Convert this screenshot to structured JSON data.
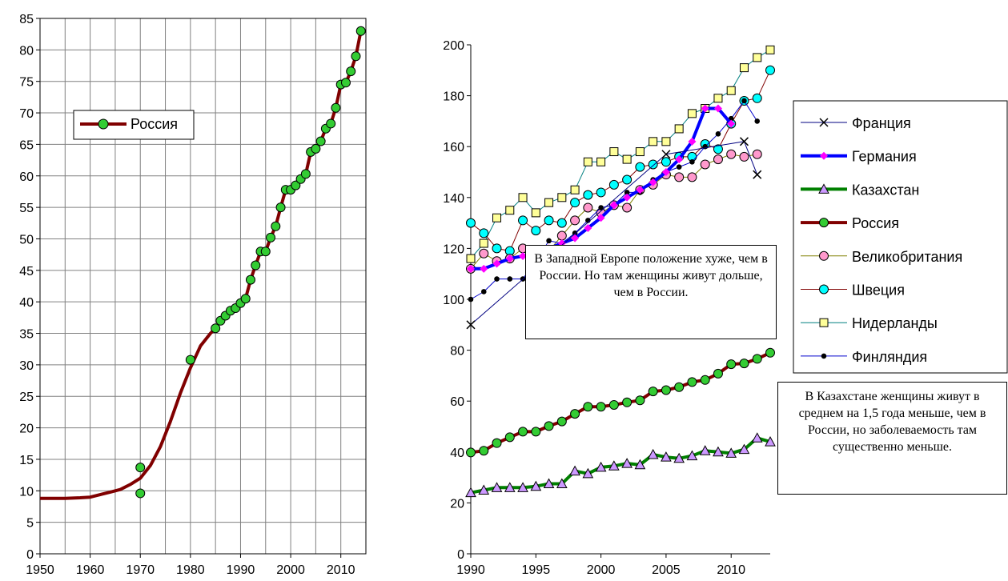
{
  "chart_data": [
    {
      "type": "line",
      "xlim": [
        1950,
        2015
      ],
      "ylim": [
        0,
        85
      ],
      "x_ticks": [
        1950,
        1960,
        1970,
        1980,
        1990,
        2000,
        2010
      ],
      "y_ticks": [
        0,
        5,
        10,
        15,
        20,
        25,
        30,
        35,
        40,
        45,
        50,
        55,
        60,
        65,
        70,
        75,
        80,
        85
      ],
      "grid": true,
      "legend_position": "top-left",
      "colors": {
        "line": "#800000",
        "marker_fill": "#33cc33",
        "marker_edge": "#000000"
      },
      "series": [
        {
          "name": "Россия",
          "line": [
            [
              1950,
              8.8
            ],
            [
              1955,
              8.8
            ],
            [
              1958,
              8.9
            ],
            [
              1960,
              9.0
            ],
            [
              1962,
              9.4
            ],
            [
              1964,
              9.8
            ],
            [
              1966,
              10.2
            ],
            [
              1968,
              11.0
            ],
            [
              1970,
              12.0
            ],
            [
              1972,
              14.0
            ],
            [
              1974,
              17.0
            ],
            [
              1976,
              21.0
            ],
            [
              1978,
              25.5
            ],
            [
              1980,
              29.5
            ],
            [
              1982,
              33.0
            ],
            [
              1984,
              35.0
            ],
            [
              1985,
              35.8
            ],
            [
              1986,
              37.0
            ],
            [
              1987,
              37.8
            ],
            [
              1988,
              38.5
            ],
            [
              1989,
              39.0
            ],
            [
              1990,
              39.8
            ],
            [
              1991,
              40.5
            ],
            [
              1992,
              43.5
            ],
            [
              1993,
              45.8
            ],
            [
              1994,
              48.0
            ],
            [
              1995,
              48.0
            ],
            [
              1996,
              50.2
            ],
            [
              1997,
              52.0
            ],
            [
              1998,
              55.0
            ],
            [
              1999,
              57.8
            ],
            [
              2000,
              57.8
            ],
            [
              2001,
              58.5
            ],
            [
              2002,
              59.5
            ],
            [
              2003,
              60.3
            ],
            [
              2004,
              63.8
            ],
            [
              2005,
              64.3
            ],
            [
              2006,
              65.5
            ],
            [
              2007,
              67.5
            ],
            [
              2008,
              68.3
            ],
            [
              2009,
              70.8
            ],
            [
              2010,
              74.5
            ],
            [
              2011,
              74.8
            ],
            [
              2012,
              76.6
            ],
            [
              2013,
              79.0
            ],
            [
              2014,
              83.0
            ]
          ],
          "points": [
            [
              1970,
              13.7
            ],
            [
              1970,
              9.6
            ],
            [
              1980,
              30.8
            ],
            [
              1985,
              35.8
            ],
            [
              1986,
              37.0
            ],
            [
              1987,
              37.8
            ],
            [
              1988,
              38.6
            ],
            [
              1989,
              39.0
            ],
            [
              1990,
              39.8
            ],
            [
              1991,
              40.5
            ],
            [
              1992,
              43.5
            ],
            [
              1993,
              45.8
            ],
            [
              1994,
              48.0
            ],
            [
              1995,
              48.0
            ],
            [
              1996,
              50.2
            ],
            [
              1997,
              52.0
            ],
            [
              1998,
              55.0
            ],
            [
              1999,
              57.8
            ],
            [
              2000,
              57.8
            ],
            [
              2001,
              58.5
            ],
            [
              2002,
              59.5
            ],
            [
              2003,
              60.3
            ],
            [
              2004,
              63.8
            ],
            [
              2005,
              64.3
            ],
            [
              2006,
              65.5
            ],
            [
              2007,
              67.5
            ],
            [
              2008,
              68.3
            ],
            [
              2009,
              70.8
            ],
            [
              2010,
              74.5
            ],
            [
              2011,
              74.8
            ],
            [
              2012,
              76.6
            ],
            [
              2013,
              79.0
            ],
            [
              2014,
              83.0
            ]
          ]
        }
      ]
    },
    {
      "type": "line",
      "xlim": [
        1990,
        2013
      ],
      "ylim": [
        0,
        200
      ],
      "x_ticks": [
        1990,
        1995,
        2000,
        2005,
        2010
      ],
      "y_ticks": [
        0,
        20,
        40,
        60,
        80,
        100,
        120,
        140,
        160,
        180,
        200
      ],
      "grid": false,
      "legend_position": "right",
      "series": [
        {
          "name": "Франция",
          "color": "#000080",
          "marker": "x",
          "marker_fill": "#000000",
          "line_width": 1,
          "x": [
            1990,
            2005,
            2011,
            2012
          ],
          "y": [
            90,
            157,
            162,
            149
          ]
        },
        {
          "name": "Германия",
          "color": "#0000ff",
          "marker": "diamond",
          "marker_fill": "#ff00ff",
          "line_width": 4,
          "x": [
            1990,
            1991,
            1992,
            1993,
            1994,
            1995,
            1996,
            1997,
            1998,
            1999,
            2000,
            2001,
            2002,
            2003,
            2004,
            2005,
            2006,
            2007,
            2008,
            2009,
            2010
          ],
          "y": [
            112,
            112,
            114,
            116,
            117,
            118,
            120,
            122,
            124,
            128,
            132,
            137,
            140,
            143,
            146,
            150,
            155,
            162,
            175,
            175,
            169
          ]
        },
        {
          "name": "Казахстан",
          "color": "#008000",
          "marker": "triangle",
          "marker_fill": "#cc99ff",
          "line_width": 4,
          "x": [
            1990,
            1991,
            1992,
            1993,
            1994,
            1995,
            1996,
            1997,
            1998,
            1999,
            2000,
            2001,
            2002,
            2003,
            2004,
            2005,
            2006,
            2007,
            2008,
            2009,
            2010,
            2011,
            2012,
            2013
          ],
          "y": [
            24,
            25,
            26,
            26,
            26,
            26.5,
            27.5,
            27.5,
            32.5,
            31.5,
            34,
            34.5,
            35.5,
            35,
            39,
            38,
            37.5,
            38.5,
            40.5,
            40,
            39.5,
            41,
            45.5,
            44
          ]
        },
        {
          "name": "Россия",
          "color": "#800000",
          "marker": "circle",
          "marker_fill": "#33cc33",
          "line_width": 4,
          "x": [
            1990,
            1991,
            1992,
            1993,
            1994,
            1995,
            1996,
            1997,
            1998,
            1999,
            2000,
            2001,
            2002,
            2003,
            2004,
            2005,
            2006,
            2007,
            2008,
            2009,
            2010,
            2011,
            2012,
            2013
          ],
          "y": [
            39.8,
            40.5,
            43.5,
            45.8,
            48,
            48,
            50.2,
            52,
            55,
            57.8,
            57.8,
            58.5,
            59.5,
            60.3,
            63.8,
            64.3,
            65.5,
            67.5,
            68.3,
            70.8,
            74.5,
            74.8,
            76.6,
            79
          ]
        },
        {
          "name": "Великобритания",
          "color": "#808000",
          "marker": "circle",
          "marker_fill": "#ff99cc",
          "line_width": 1,
          "x": [
            1990,
            1991,
            1992,
            1993,
            1994,
            1995,
            1996,
            1997,
            1998,
            1999,
            2000,
            2001,
            2002,
            2003,
            2004,
            2005,
            2006,
            2007,
            2008,
            2009,
            2010,
            2011,
            2012
          ],
          "y": [
            112,
            118,
            115,
            116,
            120,
            118,
            119,
            125,
            131,
            136,
            134,
            137,
            136,
            143,
            145,
            149,
            148,
            148,
            153,
            155,
            157,
            156,
            157
          ]
        },
        {
          "name": "Швеция",
          "color": "#800000",
          "marker": "circle",
          "marker_fill": "#00ffff",
          "line_width": 1,
          "x": [
            1990,
            1991,
            1992,
            1993,
            1994,
            1995,
            1996,
            1997,
            1998,
            1999,
            2000,
            2001,
            2002,
            2003,
            2004,
            2005,
            2006,
            2007,
            2008,
            2009,
            2010,
            2011,
            2012,
            2013
          ],
          "y": [
            130,
            126,
            120,
            119,
            131,
            127,
            131,
            130,
            138,
            141,
            142,
            145,
            147,
            152,
            153,
            154,
            156,
            156,
            161,
            159,
            169,
            178,
            179,
            190
          ]
        },
        {
          "name": "Нидерланды",
          "color": "#008080",
          "marker": "square",
          "marker_fill": "#ffff99",
          "line_width": 1,
          "x": [
            1990,
            1991,
            1992,
            1993,
            1994,
            1995,
            1996,
            1997,
            1998,
            1999,
            2000,
            2001,
            2002,
            2003,
            2004,
            2005,
            2006,
            2007,
            2008,
            2009,
            2010,
            2011,
            2012,
            2013
          ],
          "y": [
            116,
            122,
            132,
            135,
            140,
            134,
            138,
            140,
            143,
            154,
            154,
            158,
            155,
            158,
            162,
            162,
            167,
            173,
            175,
            179,
            182,
            191,
            195,
            198
          ]
        },
        {
          "name": "Финляндия",
          "color": "#0000cc",
          "marker": "dot",
          "marker_fill": "#000000",
          "line_width": 1,
          "x": [
            1990,
            1991,
            1992,
            1993,
            1994,
            1995,
            1996,
            1997,
            1998,
            1999,
            2000,
            2001,
            2002,
            2003,
            2004,
            2005,
            2006,
            2007,
            2008,
            2009,
            2010,
            2011,
            2012
          ],
          "y": [
            100,
            103,
            108,
            108,
            108,
            115,
            123,
            122,
            126,
            131,
            136,
            137,
            142,
            142,
            147,
            150,
            152,
            154,
            160,
            165,
            171,
            178,
            170
          ]
        }
      ],
      "annotations": [
        "В Западной Европе положение хуже, чем в России. Но там женщины живут дольше, чем в России.",
        "В Казахстане женщины живут в среднем на 1,5 года меньше, чем в России, но заболеваемость там существенно меньше."
      ]
    }
  ]
}
